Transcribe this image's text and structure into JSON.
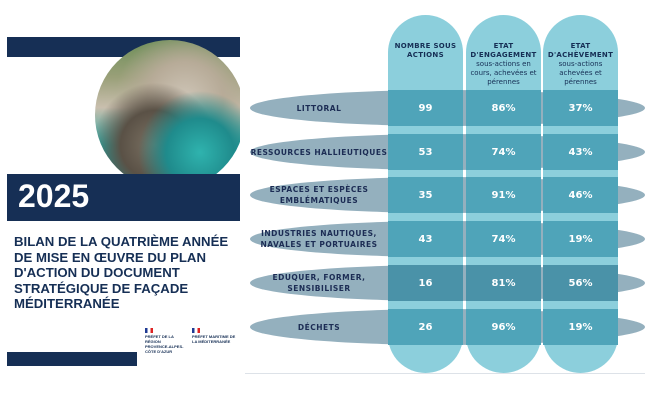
{
  "cover": {
    "year": "2025",
    "title": "BILAN DE LA QUATRIÈME ANNÉE DE MISE EN ŒUVRE DU PLAN D'ACTION DU DOCUMENT STRATÉGIQUE DE FAÇADE MÉDITERRANÉE",
    "logos": [
      {
        "text": "PRÉFET DE LA RÉGION PROVENCE-ALPES-CÔTE D'AZUR"
      },
      {
        "text": "PRÉFET MARITIME DE LA MÉDITERRANÉE"
      }
    ]
  },
  "table": {
    "columns": [
      {
        "title": "NOMBRE SOUS ACTIONS",
        "subtitle": ""
      },
      {
        "title": "ETAT D'ENGAGEMENT",
        "subtitle": "sous-actions en cours, achevées et pérennes"
      },
      {
        "title": "ETAT D'ACHÈVEMENT",
        "subtitle": "sous-actions achevées et pérennes"
      }
    ],
    "rows": [
      {
        "label": "LITTORAL",
        "values": [
          "99",
          "86%",
          "37%"
        ]
      },
      {
        "label": "RESSOURCES HALLIEUTIQUES",
        "values": [
          "53",
          "74%",
          "43%"
        ]
      },
      {
        "label": "ESPACES ET ESPÈCES EMBLÉMATIQUES",
        "values": [
          "35",
          "91%",
          "46%"
        ]
      },
      {
        "label": "INDUSTRIES NAUTIQUES, NAVALES ET PORTUAIRES",
        "values": [
          "43",
          "74%",
          "19%"
        ]
      },
      {
        "label": "EDUQUER, FORMER, SENSIBILISER",
        "values": [
          "16",
          "81%",
          "56%"
        ]
      },
      {
        "label": "DÉCHETS",
        "values": [
          "26",
          "96%",
          "19%"
        ]
      }
    ]
  },
  "colors": {
    "navy": "#162f55",
    "column": "#8ccfdc",
    "row": "#94b0be",
    "cell": "#4fa4b9"
  }
}
